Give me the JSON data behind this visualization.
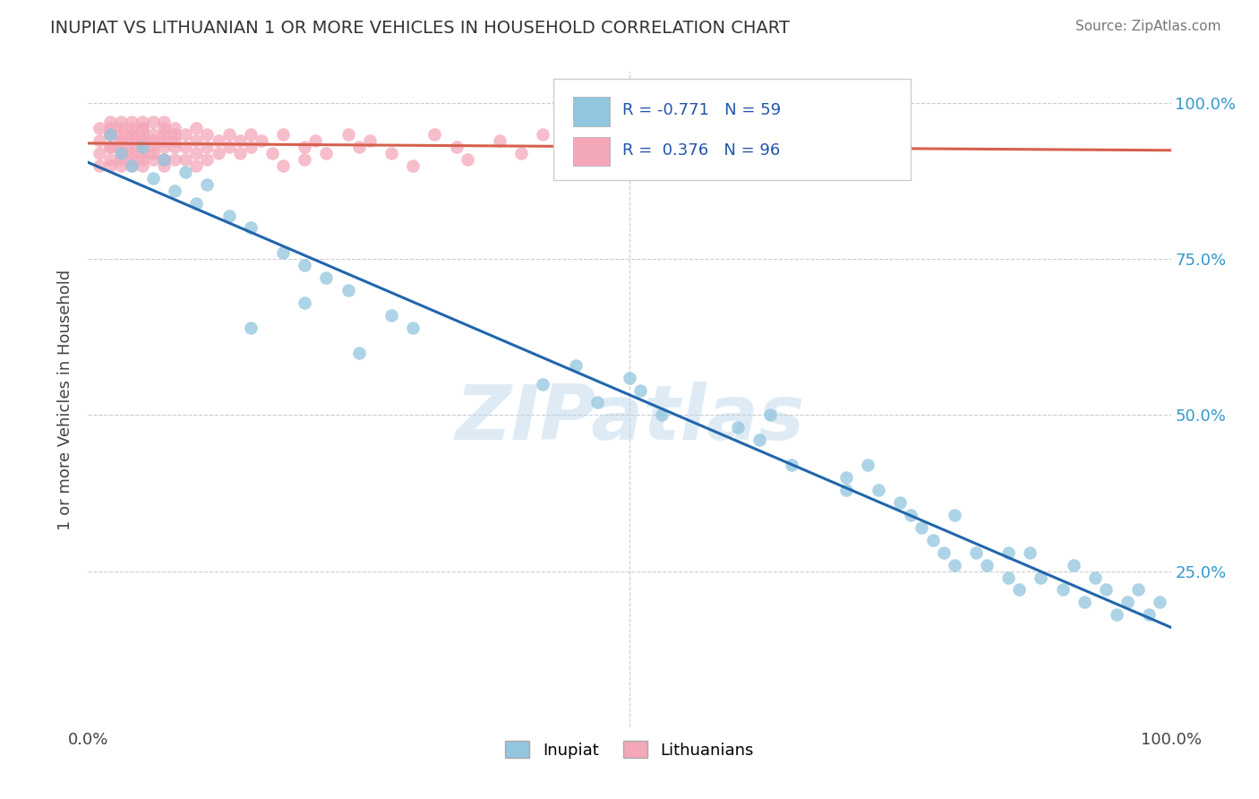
{
  "title": "INUPIAT VS LITHUANIAN 1 OR MORE VEHICLES IN HOUSEHOLD CORRELATION CHART",
  "source": "Source: ZipAtlas.com",
  "ylabel": "1 or more Vehicles in Household",
  "xlim": [
    0.0,
    1.0
  ],
  "ylim": [
    0.0,
    1.05
  ],
  "inupiat_color": "#92c5de",
  "inupiat_edge": "#6aaed6",
  "lithuanian_color": "#f4a7b9",
  "lithuanian_edge": "#e07090",
  "inupiat_line_color": "#2166ac",
  "lithuanian_line_color": "#d6604d",
  "inupiat_R": -0.771,
  "inupiat_N": 59,
  "lithuanian_R": 0.376,
  "lithuanian_N": 96,
  "watermark": "ZIPatlas",
  "inupiat_x": [
    0.02,
    0.03,
    0.04,
    0.05,
    0.06,
    0.07,
    0.08,
    0.09,
    0.1,
    0.11,
    0.13,
    0.15,
    0.18,
    0.2,
    0.22,
    0.24,
    0.28,
    0.3,
    0.42,
    0.45,
    0.47,
    0.5,
    0.51,
    0.53,
    0.6,
    0.62,
    0.63,
    0.7,
    0.72,
    0.73,
    0.75,
    0.76,
    0.77,
    0.78,
    0.79,
    0.8,
    0.82,
    0.83,
    0.85,
    0.86,
    0.87,
    0.88,
    0.9,
    0.91,
    0.92,
    0.93,
    0.94,
    0.95,
    0.96,
    0.97,
    0.98,
    0.99,
    0.15,
    0.2,
    0.25,
    0.65,
    0.7,
    0.8,
    0.85
  ],
  "inupiat_y": [
    0.95,
    0.92,
    0.9,
    0.93,
    0.88,
    0.91,
    0.86,
    0.89,
    0.84,
    0.87,
    0.82,
    0.8,
    0.76,
    0.74,
    0.72,
    0.7,
    0.66,
    0.64,
    0.55,
    0.58,
    0.52,
    0.56,
    0.54,
    0.5,
    0.48,
    0.46,
    0.5,
    0.4,
    0.42,
    0.38,
    0.36,
    0.34,
    0.32,
    0.3,
    0.28,
    0.26,
    0.28,
    0.26,
    0.24,
    0.22,
    0.28,
    0.24,
    0.22,
    0.26,
    0.2,
    0.24,
    0.22,
    0.18,
    0.2,
    0.22,
    0.18,
    0.2,
    0.64,
    0.68,
    0.6,
    0.42,
    0.38,
    0.34,
    0.28
  ],
  "lithuanian_x": [
    0.01,
    0.01,
    0.01,
    0.01,
    0.02,
    0.02,
    0.02,
    0.02,
    0.02,
    0.02,
    0.02,
    0.02,
    0.03,
    0.03,
    0.03,
    0.03,
    0.03,
    0.03,
    0.03,
    0.03,
    0.03,
    0.04,
    0.04,
    0.04,
    0.04,
    0.04,
    0.04,
    0.04,
    0.04,
    0.04,
    0.05,
    0.05,
    0.05,
    0.05,
    0.05,
    0.05,
    0.05,
    0.05,
    0.05,
    0.05,
    0.06,
    0.06,
    0.06,
    0.06,
    0.06,
    0.06,
    0.07,
    0.07,
    0.07,
    0.07,
    0.07,
    0.07,
    0.07,
    0.08,
    0.08,
    0.08,
    0.08,
    0.08,
    0.09,
    0.09,
    0.09,
    0.1,
    0.1,
    0.1,
    0.1,
    0.11,
    0.11,
    0.11,
    0.12,
    0.12,
    0.13,
    0.13,
    0.14,
    0.14,
    0.15,
    0.15,
    0.16,
    0.17,
    0.18,
    0.18,
    0.2,
    0.2,
    0.21,
    0.22,
    0.24,
    0.25,
    0.26,
    0.28,
    0.3,
    0.32,
    0.34,
    0.35,
    0.38,
    0.4,
    0.42,
    0.45
  ],
  "lithuanian_y": [
    0.94,
    0.96,
    0.92,
    0.9,
    0.95,
    0.93,
    0.97,
    0.91,
    0.95,
    0.93,
    0.9,
    0.96,
    0.94,
    0.92,
    0.96,
    0.9,
    0.95,
    0.93,
    0.97,
    0.91,
    0.94,
    0.95,
    0.93,
    0.91,
    0.97,
    0.94,
    0.92,
    0.96,
    0.9,
    0.95,
    0.96,
    0.94,
    0.92,
    0.97,
    0.91,
    0.95,
    0.93,
    0.9,
    0.96,
    0.94,
    0.95,
    0.93,
    0.91,
    0.97,
    0.94,
    0.92,
    0.96,
    0.9,
    0.95,
    0.93,
    0.91,
    0.94,
    0.97,
    0.95,
    0.93,
    0.91,
    0.96,
    0.94,
    0.95,
    0.93,
    0.91,
    0.96,
    0.94,
    0.92,
    0.9,
    0.95,
    0.93,
    0.91,
    0.94,
    0.92,
    0.95,
    0.93,
    0.94,
    0.92,
    0.95,
    0.93,
    0.94,
    0.92,
    0.9,
    0.95,
    0.93,
    0.91,
    0.94,
    0.92,
    0.95,
    0.93,
    0.94,
    0.92,
    0.9,
    0.95,
    0.93,
    0.91,
    0.94,
    0.92,
    0.95,
    0.96
  ]
}
